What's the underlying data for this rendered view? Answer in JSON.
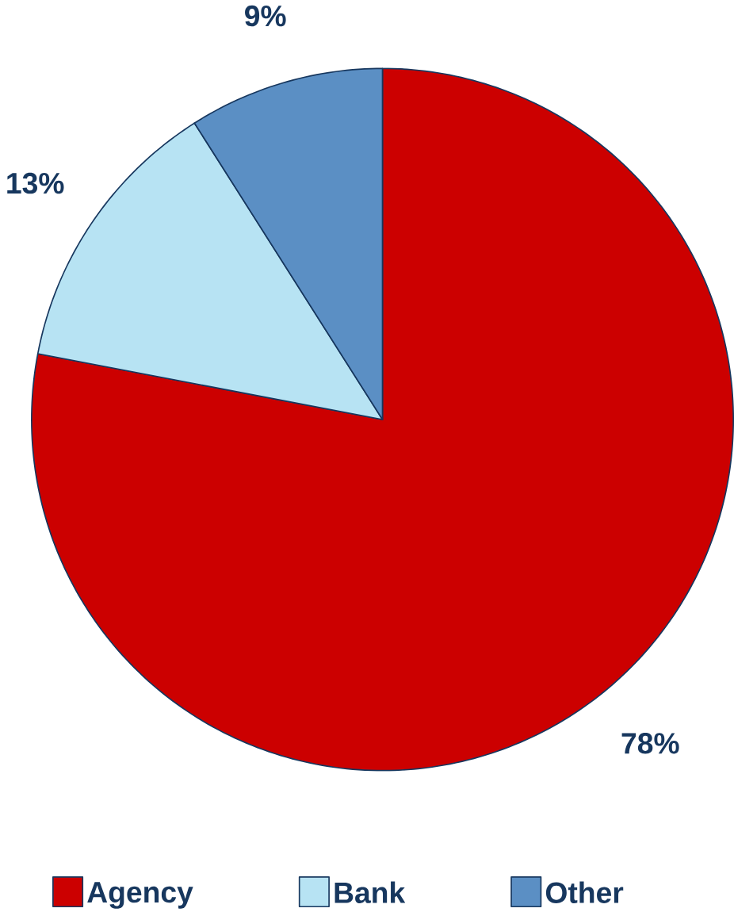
{
  "chart_data": {
    "type": "pie",
    "categories": [
      "Agency",
      "Bank",
      "Other"
    ],
    "values": [
      78,
      13,
      9
    ],
    "colors": [
      "#cc0000",
      "#b7e3f3",
      "#5b8fc4"
    ],
    "value_labels": [
      "78%",
      "13%",
      "9%"
    ],
    "legend": "bottom"
  }
}
